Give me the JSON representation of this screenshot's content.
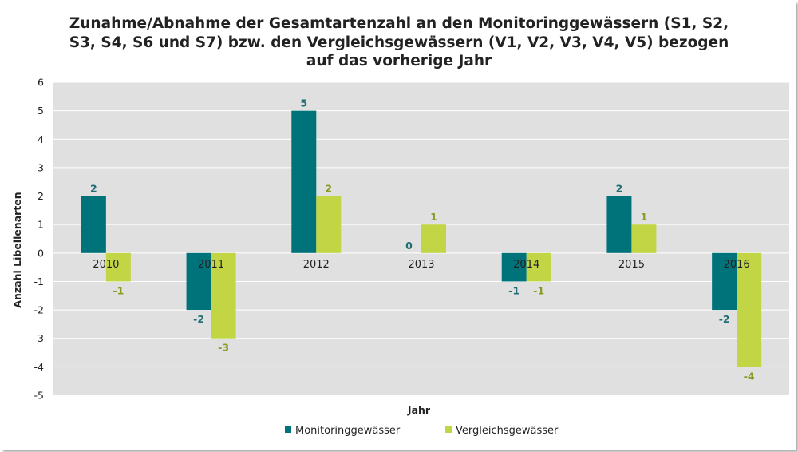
{
  "chart_data": {
    "type": "bar",
    "title_lines": [
      "Zunahme/Abnahme der Gesamtartenzahl an den Monitoringgewässern (S1, S2,",
      "S3, S4, S6 und S7) bzw. den Vergleichsgewässern (V1, V2, V3, V4, V5) bezogen",
      "auf das vorherige Jahr"
    ],
    "xlabel": "Jahr",
    "ylabel": "Anzahl Libellenarten",
    "ylim": [
      -5,
      6
    ],
    "yticks": [
      6,
      5,
      4,
      3,
      2,
      1,
      0,
      -1,
      -2,
      -3,
      -4,
      -5
    ],
    "grid": true,
    "legend_position": "bottom",
    "categories": [
      "2010",
      "2011",
      "2012",
      "2013",
      "2014",
      "2015",
      "2016"
    ],
    "series": [
      {
        "name": "Monitoringgewässer",
        "color": "#00727A",
        "label_color": "#1E6E74",
        "values": [
          2,
          -2,
          5,
          0,
          -1,
          2,
          -2
        ]
      },
      {
        "name": "Vergleichsgewässer",
        "color": "#C2D545",
        "label_color": "#8A9A22",
        "values": [
          -1,
          -3,
          2,
          1,
          -1,
          1,
          -4
        ]
      }
    ]
  },
  "colors": {
    "plot_background": "#E0E0E0",
    "gridline": "#FFFFFF"
  }
}
